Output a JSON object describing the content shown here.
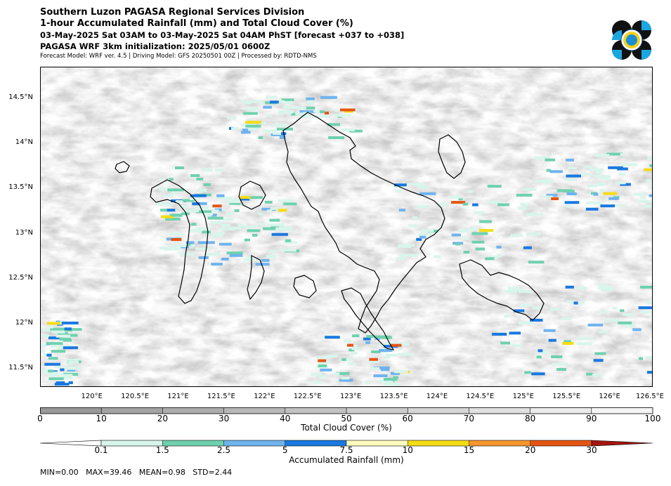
{
  "header": {
    "title": "Southern Luzon PAGASA Regional Services Division",
    "subtitle": "1-hour Accumulated Rainfall (mm) and Total Cloud Cover (%)",
    "valid_time": "03-May-2025 Sat 03AM to 03-May-2025 Sat 04AM PhST [forecast +037 to +038]",
    "init": "PAGASA WRF 3km initialization: 2025/05/01 0600Z",
    "model_info": "Forecast Model: WRF ver. 4.5 | Driving Model: GFS 20250501 00Z | Processed by: RDTD-NMS"
  },
  "logo": {
    "name": "PAGASA seal"
  },
  "map": {
    "lon_range": [
      119.4,
      126.5
    ],
    "lat_range": [
      11.3,
      14.85
    ],
    "lat_labels": [
      "14.5°N",
      "14°N",
      "13.5°N",
      "13°N",
      "12.5°N",
      "12°N",
      "11.5°N"
    ],
    "lat_values": [
      14.5,
      14.0,
      13.5,
      13.0,
      12.5,
      12.0,
      11.5
    ],
    "lon_labels": [
      "120°E",
      "120.5°E",
      "121°E",
      "121.5°E",
      "122°E",
      "122.5°E",
      "123°E",
      "123.5°E",
      "124°E",
      "124.5°E",
      "125°E",
      "125.5°E",
      "126°E",
      "126.5°E"
    ],
    "lon_values": [
      120.0,
      120.5,
      121.0,
      121.5,
      122.0,
      122.5,
      123.0,
      123.5,
      124.0,
      124.5,
      125.0,
      125.5,
      126.0,
      126.5
    ]
  },
  "cloud_colorbar": {
    "title": "Total Cloud Cover (%)",
    "ticks": [
      "0",
      "10",
      "20",
      "30",
      "40",
      "50",
      "60",
      "70",
      "80",
      "90",
      "100"
    ],
    "colors": [
      "#999999",
      "#a3a3a3",
      "#adadad",
      "#b8b8b8",
      "#c2c2c2",
      "#cccccc",
      "#d6d6d6",
      "#e0e0e0",
      "#ebebeb",
      "#f5f5f5"
    ]
  },
  "rain_colorbar": {
    "title": "Accumulated Rainfall (mm)",
    "ticks": [
      "0.1",
      "1.5",
      "2.5",
      "5",
      "7.5",
      "10",
      "15",
      "20",
      "30"
    ],
    "colors": [
      "#ffffff",
      "#d8f5ec",
      "#6fd1ae",
      "#6fb3ef",
      "#1978e0",
      "#fffcbc",
      "#f6dc14",
      "#f6962d",
      "#e45513",
      "#b51a13",
      "#a51510"
    ]
  },
  "stats": {
    "text": "MIN=0.00   MAX=39.46   MEAN=0.98   STD=2.44"
  }
}
